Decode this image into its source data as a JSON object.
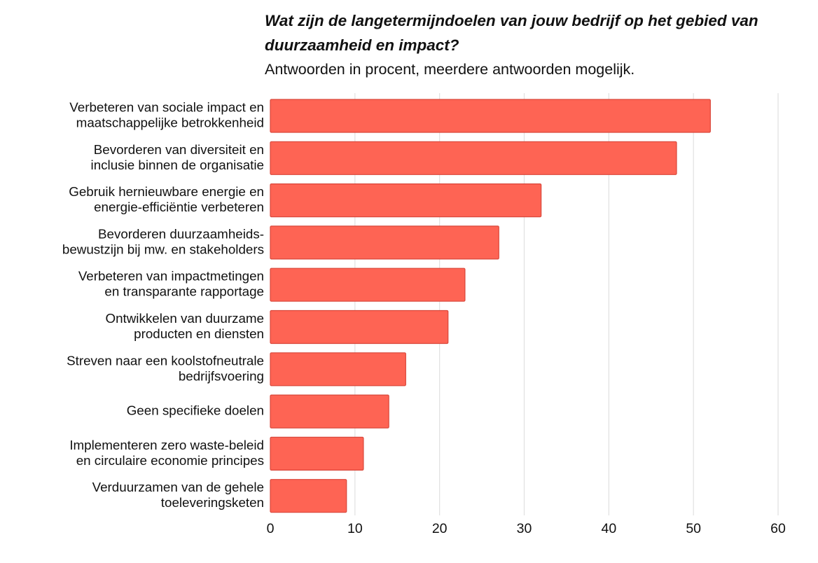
{
  "chart_data": {
    "type": "bar",
    "orientation": "horizontal",
    "title": "Wat zijn de langetermijndoelen van jouw bedrijf op het gebied van duurzaamheid en impact?",
    "subtitle": "Antwoorden in procent, meerdere antwoorden mogelijk.",
    "categories": [
      [
        "Verbeteren van sociale impact en",
        "maatschappelijke betrokkenheid"
      ],
      [
        "Bevorderen van diversiteit en",
        "inclusie binnen de organisatie"
      ],
      [
        "Gebruik hernieuwbare energie en",
        "energie-efficiëntie verbeteren"
      ],
      [
        "Bevorderen duurzaamheids-",
        "bewustzijn bij mw. en stakeholders"
      ],
      [
        "Verbeteren van impactmetingen",
        "en transparante rapportage"
      ],
      [
        "Ontwikkelen van duurzame",
        "producten en diensten"
      ],
      [
        "Streven naar een koolstofneutrale",
        "bedrijfsvoering"
      ],
      [
        "Geen specifieke doelen"
      ],
      [
        "Implementeren zero waste-beleid",
        "en circulaire economie principes"
      ],
      [
        "Verduurzamen van de gehele",
        "toeleveringsketen"
      ]
    ],
    "values": [
      52,
      48,
      32,
      27,
      23,
      21,
      16,
      14,
      11,
      9
    ],
    "xlim": [
      0,
      60
    ],
    "xticks": [
      0,
      10,
      20,
      30,
      40,
      50,
      60
    ],
    "xlabel": "",
    "ylabel": "",
    "grid": true,
    "legend": "none",
    "colors": {
      "bar_fill": "#fe6454",
      "bar_stroke": "#d9473a",
      "grid": "#e0e0e0"
    }
  }
}
